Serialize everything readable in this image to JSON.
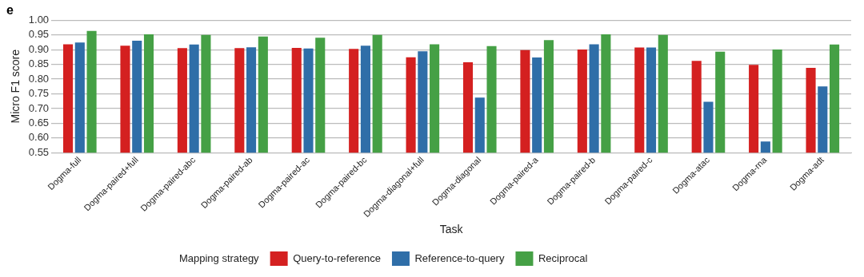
{
  "chart_data": {
    "type": "bar",
    "title": "e",
    "xlabel": "Task",
    "ylabel": "Micro F1 score",
    "legend_title": "Mapping strategy",
    "categories": [
      "Dogma-full",
      "Dogma-paired+full",
      "Dogma-paired-abc",
      "Dogma-paired-ab",
      "Dogma-paired-ac",
      "Dogma-paired-bc",
      "Dogma-diagonal+full",
      "Dogma-diagonal",
      "Dogma-paired-a",
      "Dogma-paired-b",
      "Dogma-paired-c",
      "Dogma-atac",
      "Dogma-rna",
      "Dogma-adt"
    ],
    "series": [
      {
        "name": "Query-to-reference",
        "color": "#d42020",
        "values": [
          0.918,
          0.913,
          0.905,
          0.905,
          0.906,
          0.902,
          0.874,
          0.857,
          0.898,
          0.9,
          0.907,
          0.862,
          0.848,
          0.838
        ]
      },
      {
        "name": "Reference-to-query",
        "color": "#2f6ea8",
        "values": [
          0.924,
          0.93,
          0.917,
          0.908,
          0.904,
          0.913,
          0.894,
          0.737,
          0.873,
          0.918,
          0.907,
          0.723,
          0.588,
          0.775
        ]
      },
      {
        "name": "Reciprocal",
        "color": "#45a045",
        "values": [
          0.963,
          0.952,
          0.95,
          0.944,
          0.94,
          0.95,
          0.918,
          0.912,
          0.932,
          0.952,
          0.95,
          0.893,
          0.9,
          0.917
        ]
      }
    ],
    "ylim": [
      0.55,
      1.0
    ],
    "yticks": [
      {
        "value": 0.55,
        "label": "0.55"
      },
      {
        "value": 0.6,
        "label": "0.60"
      },
      {
        "value": 0.65,
        "label": "0.65"
      },
      {
        "value": 0.7,
        "label": "0.70"
      },
      {
        "value": 0.75,
        "label": "0.75"
      },
      {
        "value": 0.8,
        "label": "0.80"
      },
      {
        "value": 0.85,
        "label": "0.85"
      },
      {
        "value": 0.9,
        "label": "0.90"
      },
      {
        "value": 0.95,
        "label": "0.95"
      },
      {
        "value": 1.0,
        "label": "1.00"
      }
    ],
    "grid": "y",
    "legend": "bottom"
  }
}
